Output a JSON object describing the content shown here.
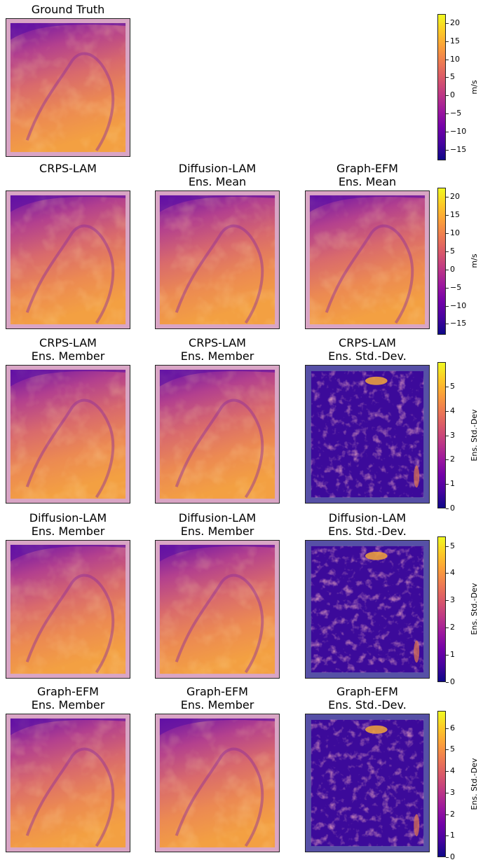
{
  "chart_data": {
    "type": "heatmap",
    "panels": [
      {
        "title": "Ground Truth",
        "field": "mean"
      },
      {
        "title": "CRPS-LAM",
        "field": "mean"
      },
      {
        "title": "Diffusion-LAM\nEns. Mean",
        "field": "mean"
      },
      {
        "title": "Graph-EFM\nEns. Mean",
        "field": "mean"
      },
      {
        "title": "CRPS-LAM\nEns. Member",
        "field": "member"
      },
      {
        "title": "CRPS-LAM\nEns. Member",
        "field": "member"
      },
      {
        "title": "CRPS-LAM\nEns. Std.-Dev.",
        "field": "std"
      },
      {
        "title": "Diffusion-LAM\nEns. Member",
        "field": "member"
      },
      {
        "title": "Diffusion-LAM\nEns. Member",
        "field": "member"
      },
      {
        "title": "Diffusion-LAM\nEns. Std.-Dev.",
        "field": "std"
      },
      {
        "title": "Graph-EFM\nEns. Member",
        "field": "member"
      },
      {
        "title": "Graph-EFM\nEns. Member",
        "field": "member"
      },
      {
        "title": "Graph-EFM\nEns. Std.-Dev.",
        "field": "std"
      }
    ],
    "colorbars": [
      {
        "label": "m/s",
        "range": [
          -18,
          22.5
        ],
        "ticks": [
          "20",
          "15",
          "10",
          "5",
          "0",
          "−5",
          "−10",
          "−15"
        ],
        "tick_values": [
          20,
          15,
          10,
          5,
          0,
          -5,
          -10,
          -15
        ]
      },
      {
        "label": "m/s",
        "range": [
          -18,
          22.5
        ],
        "ticks": [
          "20",
          "15",
          "10",
          "5",
          "0",
          "−5",
          "−10",
          "−15"
        ],
        "tick_values": [
          20,
          15,
          10,
          5,
          0,
          -5,
          -10,
          -15
        ]
      },
      {
        "label": "Ens. Std.-Dev",
        "range": [
          0,
          6
        ],
        "ticks": [
          "5",
          "4",
          "3",
          "2",
          "1",
          "0"
        ],
        "tick_values": [
          5,
          4,
          3,
          2,
          1,
          0
        ]
      },
      {
        "label": "Ens. Std.-Dev",
        "range": [
          0,
          5.35
        ],
        "ticks": [
          "5",
          "4",
          "3",
          "2",
          "1",
          "0"
        ],
        "tick_values": [
          5,
          4,
          3,
          2,
          1,
          0
        ]
      },
      {
        "label": "Ens. Std.-Dev",
        "range": [
          0,
          6.8
        ],
        "ticks": [
          "6",
          "5",
          "4",
          "3",
          "2",
          "1",
          "0"
        ],
        "tick_values": [
          6,
          5,
          4,
          3,
          2,
          1,
          0
        ]
      }
    ],
    "colormap": "plasma",
    "colormap_stops": [
      "#0d0887",
      "#46039f",
      "#7201a8",
      "#9c179e",
      "#bd3786",
      "#d8576b",
      "#ed7953",
      "#fb9f3a",
      "#fdca26",
      "#f0f921"
    ]
  }
}
